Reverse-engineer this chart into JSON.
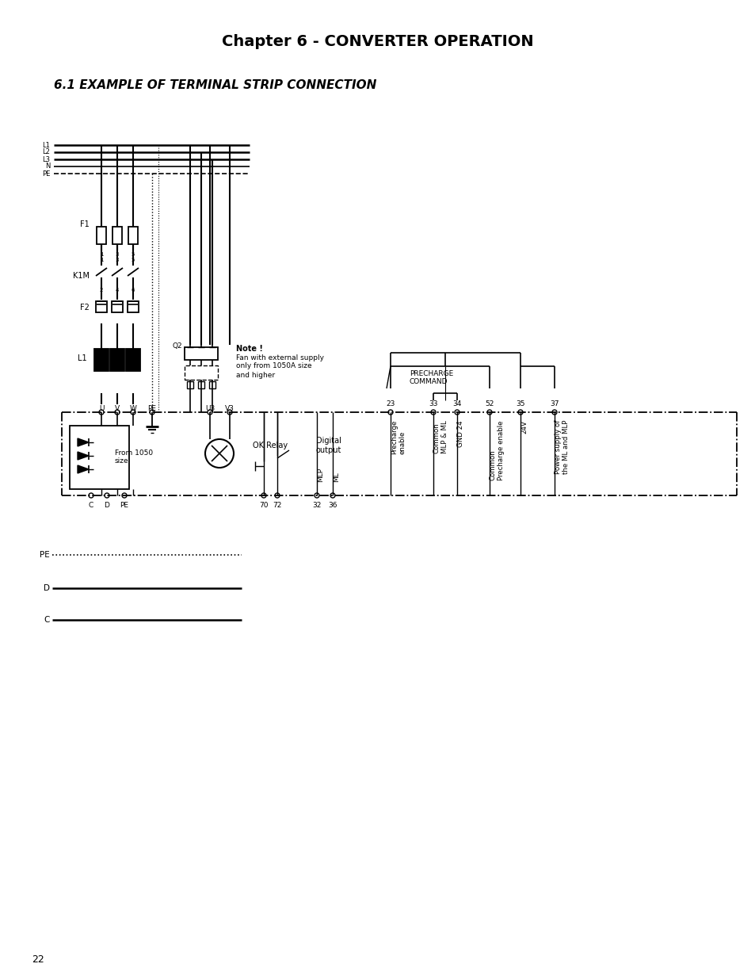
{
  "title": "Chapter 6 - CONVERTER OPERATION",
  "subtitle": "6.1 EXAMPLE OF TERMINAL STRIP CONNECTION",
  "bg_color": "#ffffff",
  "page_number": "22",
  "power_labels": [
    "L1",
    "L2",
    "L3",
    "N",
    "PE"
  ],
  "term_nums_top": [
    "23",
    "33",
    "34",
    "52",
    "35",
    "37"
  ],
  "term_labels_top": [
    "Precharge\nenable",
    "Common\nMLP & ML",
    "GND 24",
    "Common\nPrecharge enable",
    "24V",
    "Power supply of\nthe ML and MLP"
  ],
  "note_lines": [
    "Note !",
    "Fan with external supply",
    "only from 1050A size",
    "and higher"
  ],
  "precharge_text": [
    "PRECHARGE",
    "COMMAND"
  ],
  "bottom_labels": [
    [
      "PE",
      ":"
    ],
    [
      "D",
      "-"
    ],
    [
      "C",
      "-"
    ]
  ]
}
